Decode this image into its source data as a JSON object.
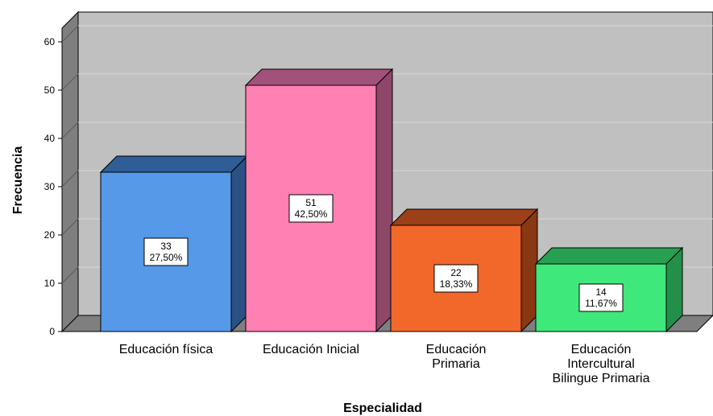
{
  "chart_data": {
    "type": "bar",
    "categories": [
      [
        "Educación física"
      ],
      [
        "Educación Inicial"
      ],
      [
        "Educación",
        "Primaria"
      ],
      [
        "Educación",
        "Intercultural",
        "Bilingue Primaria"
      ]
    ],
    "values": [
      33,
      51,
      22,
      14
    ],
    "percent_labels": [
      "27,50%",
      "42,50%",
      "18,33%",
      "11,67%"
    ],
    "colors": {
      "front": [
        "#5599E8",
        "#FF80B3",
        "#F2682A",
        "#3FE87A"
      ],
      "top": [
        "#2F5D95",
        "#A2527A",
        "#9B4018",
        "#27A052"
      ],
      "side": [
        "#2B5184",
        "#8E4768",
        "#8A3713",
        "#238F49"
      ],
      "back_wall": "#C0C0C0",
      "left_wall": "#7F7F7F",
      "floor": "#7F7F7F",
      "gridline": "#D9D9D9"
    },
    "xlabel": "Especialidad",
    "ylabel": "Frecuencia",
    "ylim": [
      0,
      60
    ],
    "yticks": [
      0,
      10,
      20,
      30,
      40,
      50,
      60
    ],
    "grid": true,
    "style": "3d"
  }
}
